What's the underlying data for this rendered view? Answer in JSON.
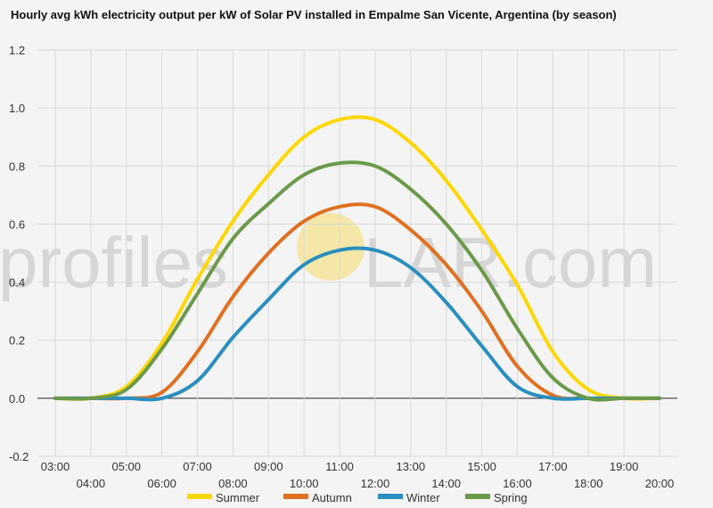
{
  "watermark": {
    "left": "profiles",
    "right": "LAR.com"
  },
  "colors": {
    "background": "#f4f4f4",
    "grid": "#d9d9d9",
    "zero_line": "#222222",
    "sun": "#f5e7a8"
  },
  "chart_data": {
    "type": "line",
    "title": "Hourly avg kWh electricity output per kW of Solar PV installed in Empalme San Vicente, Argentina (by season)",
    "xlabel": "",
    "ylabel": "",
    "x": [
      "03:00",
      "04:00",
      "05:00",
      "06:00",
      "07:00",
      "08:00",
      "09:00",
      "10:00",
      "11:00",
      "12:00",
      "13:00",
      "14:00",
      "15:00",
      "16:00",
      "17:00",
      "18:00",
      "19:00",
      "20:00"
    ],
    "ylim": [
      -0.2,
      1.2
    ],
    "yticks": [
      "-0.2",
      "0.0",
      "0.2",
      "0.4",
      "0.6",
      "0.8",
      "1.0",
      "1.2"
    ],
    "grid": true,
    "legend_position": "bottom",
    "series": [
      {
        "name": "Summer",
        "color": "#ffd700",
        "values": [
          0.0,
          0.0,
          0.04,
          0.19,
          0.41,
          0.61,
          0.77,
          0.9,
          0.96,
          0.96,
          0.88,
          0.75,
          0.58,
          0.39,
          0.16,
          0.03,
          0.0,
          0.0
        ]
      },
      {
        "name": "Autumn",
        "color": "#e07020",
        "values": [
          0.0,
          0.0,
          0.0,
          0.02,
          0.16,
          0.35,
          0.5,
          0.61,
          0.66,
          0.66,
          0.58,
          0.46,
          0.3,
          0.11,
          0.01,
          0.0,
          0.0,
          0.0
        ]
      },
      {
        "name": "Winter",
        "color": "#2a8fc0",
        "values": [
          0.0,
          0.0,
          0.0,
          0.0,
          0.06,
          0.21,
          0.34,
          0.46,
          0.51,
          0.51,
          0.45,
          0.33,
          0.18,
          0.04,
          0.0,
          0.0,
          0.0,
          0.0
        ]
      },
      {
        "name": "Spring",
        "color": "#6b9a4a",
        "values": [
          0.0,
          0.0,
          0.03,
          0.17,
          0.36,
          0.55,
          0.67,
          0.77,
          0.81,
          0.8,
          0.72,
          0.6,
          0.44,
          0.24,
          0.07,
          0.0,
          0.0,
          0.0
        ]
      }
    ]
  }
}
